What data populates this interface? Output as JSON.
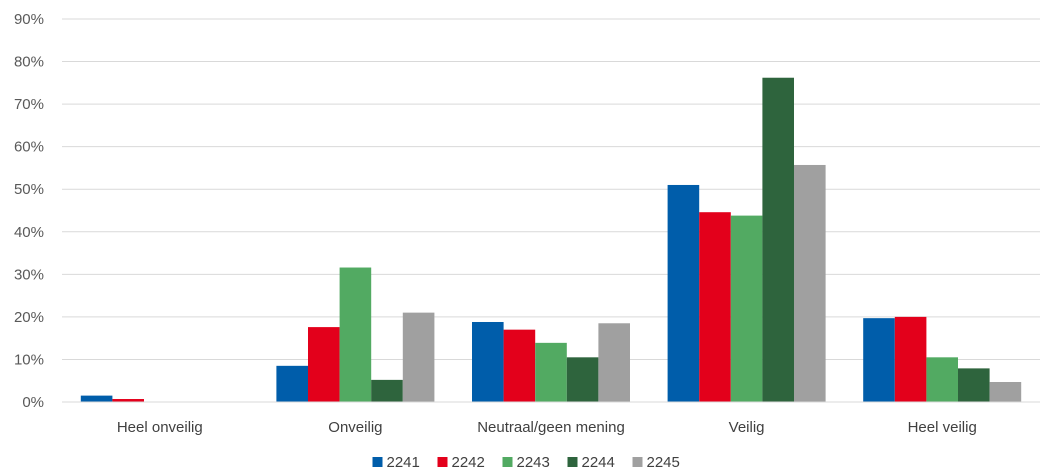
{
  "chart_data": {
    "type": "bar",
    "title": "",
    "xlabel": "",
    "ylabel": "",
    "categories": [
      "Heel onveilig",
      "Onveilig",
      "Neutraal/geen mening",
      "Veilig",
      "Heel veilig"
    ],
    "ylim": [
      0,
      90
    ],
    "yticks": [
      0,
      10,
      20,
      30,
      40,
      50,
      60,
      70,
      80,
      90
    ],
    "ytick_labels": [
      "0%",
      "10%",
      "20%",
      "30%",
      "40%",
      "50%",
      "60%",
      "70%",
      "80%",
      "90%"
    ],
    "grid": true,
    "legend_position": "bottom",
    "series": [
      {
        "name": "2241",
        "color": "#005DAA",
        "values": [
          1.5,
          8.5,
          18.8,
          51.0,
          19.7
        ]
      },
      {
        "name": "2242",
        "color": "#E3001B",
        "values": [
          0.7,
          17.6,
          17.0,
          44.6,
          20.0
        ]
      },
      {
        "name": "2243",
        "color": "#52AA62",
        "values": [
          0,
          31.6,
          13.9,
          43.8,
          10.5
        ]
      },
      {
        "name": "2244",
        "color": "#2E643D",
        "values": [
          0,
          5.2,
          10.5,
          76.2,
          7.9
        ]
      },
      {
        "name": "2245",
        "color": "#A0A0A0",
        "values": [
          0,
          21.0,
          18.5,
          55.7,
          4.7
        ]
      }
    ]
  }
}
